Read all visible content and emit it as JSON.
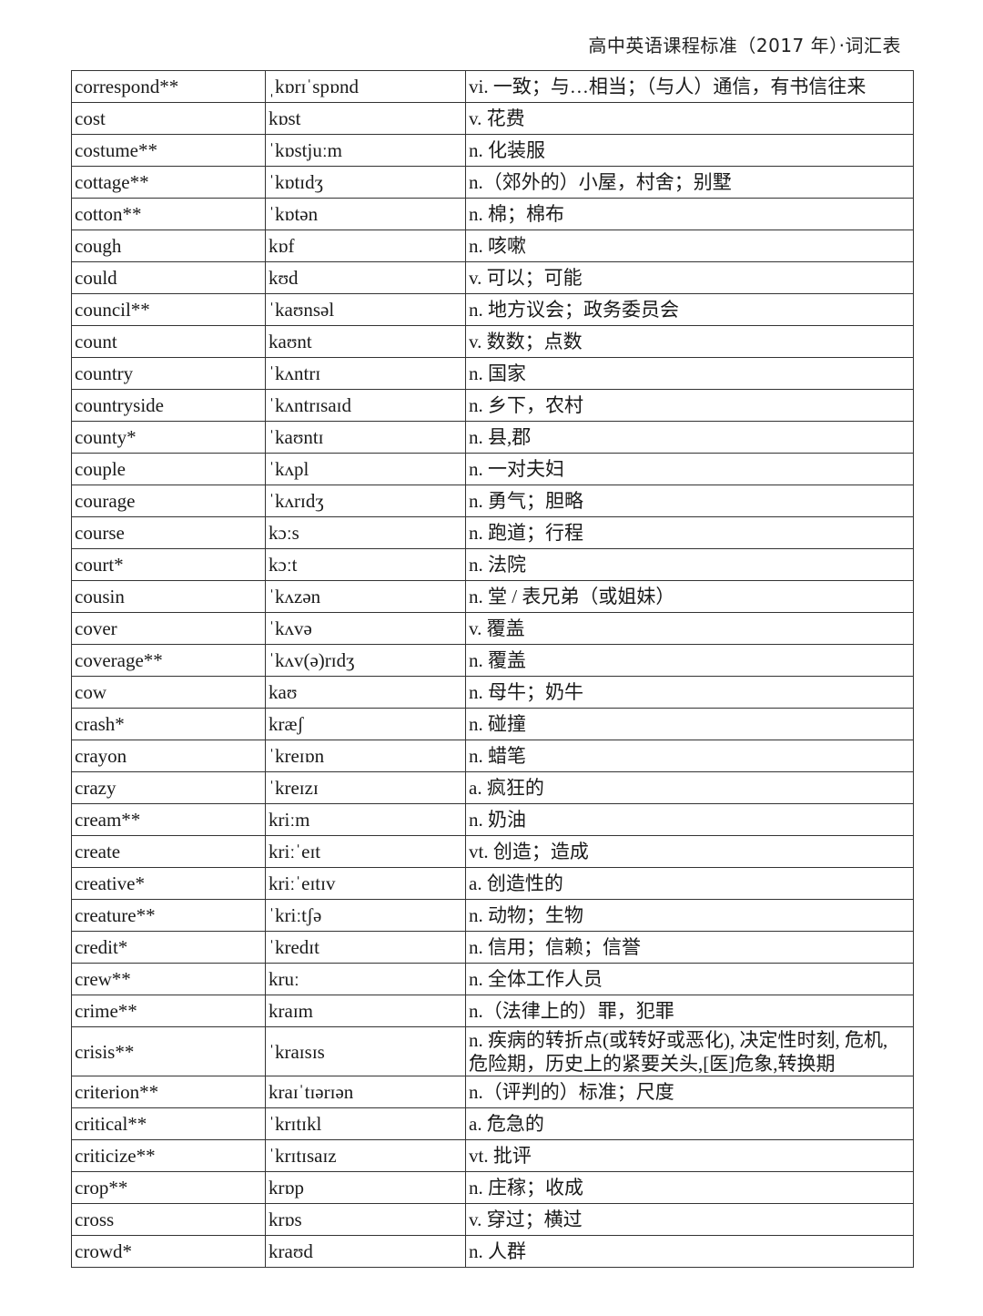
{
  "header": {
    "title": "高中英语课程标准（2017 年）·词汇表"
  },
  "rows": [
    [
      "correspond**",
      "ˌkɒrɪˈspɒnd",
      "vi. 一致；与…相当；（与人）通信，有书信往来"
    ],
    [
      "cost",
      "kɒst",
      "v. 花费"
    ],
    [
      "costume**",
      "ˈkɒstjuːm",
      "n. 化装服"
    ],
    [
      "cottage**",
      "ˈkɒtɪdʒ",
      "n.（郊外的）小屋，村舍；别墅"
    ],
    [
      "cotton**",
      "ˈkɒtən",
      "n. 棉；棉布"
    ],
    [
      "cough",
      "kɒf",
      "n. 咳嗽"
    ],
    [
      "could",
      "kʊd",
      "v. 可以；可能"
    ],
    [
      "council**",
      "ˈkaʊnsəl",
      "n. 地方议会；政务委员会"
    ],
    [
      "count",
      "kaʊnt",
      "v. 数数；点数"
    ],
    [
      "country",
      "ˈkʌntrɪ",
      "n. 国家"
    ],
    [
      "countryside",
      "ˈkʌntrɪsaɪd",
      "n. 乡下，农村"
    ],
    [
      "county*",
      "ˈkaʊntɪ",
      "n. 县,郡"
    ],
    [
      "couple",
      "ˈkʌpl",
      "n. 一对夫妇"
    ],
    [
      "courage",
      "ˈkʌrɪdʒ",
      "n. 勇气；胆略"
    ],
    [
      "course",
      "kɔːs",
      "n. 跑道；行程"
    ],
    [
      "court*",
      "kɔːt",
      "n. 法院"
    ],
    [
      "cousin",
      "ˈkʌzən",
      "n. 堂 / 表兄弟（或姐妹）"
    ],
    [
      "cover",
      "ˈkʌvə",
      "v. 覆盖"
    ],
    [
      "coverage**",
      "ˈkʌv(ə)rɪdʒ",
      "n. 覆盖"
    ],
    [
      "cow",
      "kaʊ",
      "n. 母牛；奶牛"
    ],
    [
      "crash*",
      "kræʃ",
      "n. 碰撞"
    ],
    [
      "crayon",
      "ˈkreɪɒn",
      "n. 蜡笔"
    ],
    [
      "crazy",
      "ˈkreɪzɪ",
      "a. 疯狂的"
    ],
    [
      "cream**",
      "kriːm",
      "n. 奶油"
    ],
    [
      "create",
      "kriːˈeɪt",
      "vt. 创造；造成"
    ],
    [
      "creative*",
      "kriːˈeɪtɪv",
      "a. 创造性的"
    ],
    [
      "creature**",
      "ˈkriːtʃə",
      "n. 动物；生物"
    ],
    [
      "credit*",
      "ˈkredɪt",
      "n. 信用；信赖；信誉"
    ],
    [
      "crew**",
      "kruː",
      "n. 全体工作人员"
    ],
    [
      "crime**",
      "kraɪm",
      "n.（法律上的）罪，犯罪"
    ],
    [
      "crisis**",
      "ˈkraɪsɪs",
      "n. 疾病的转折点(或转好或恶化), 决定性时刻, 危机, 危险期，历史上的紧要关头,[医]危象,转换期"
    ],
    [
      "criterion**",
      "kraɪˈtɪərɪən",
      "n.（评判的）标准；尺度"
    ],
    [
      "critical**",
      "ˈkrɪtɪkl",
      "a. 危急的"
    ],
    [
      "criticize**",
      "ˈkrɪtɪsaɪz",
      "vt. 批评"
    ],
    [
      "crop**",
      "krɒp",
      "n. 庄稼；收成"
    ],
    [
      "cross",
      "krɒs",
      "v. 穿过；横过"
    ],
    [
      "crowd*",
      "kraʊd",
      "n. 人群"
    ]
  ]
}
